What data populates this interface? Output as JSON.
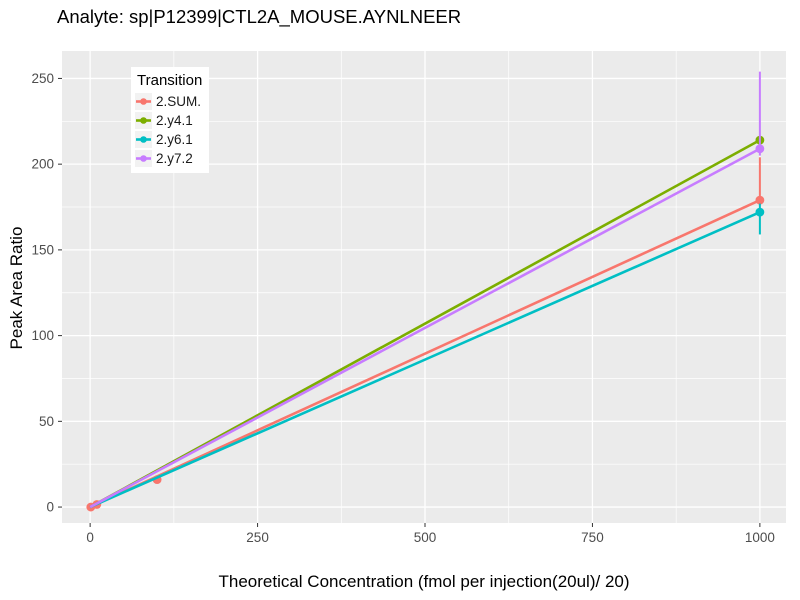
{
  "chart_data": {
    "type": "line",
    "title": "Analyte: sp|P12399|CTL2A_MOUSE.AYNLNEER",
    "xlabel": "Theoretical Concentration (fmol per injection(20ul)/ 20)",
    "ylabel": "Peak Area Ratio",
    "x_ticks": [
      0,
      250,
      500,
      750,
      1000
    ],
    "y_ticks": [
      0,
      50,
      100,
      150,
      200,
      250
    ],
    "xlim": [
      -42,
      1039
    ],
    "ylim": [
      -9.3,
      266
    ],
    "grid": true,
    "panel_bg": "#EBEBEB",
    "grid_color": "#FFFFFF",
    "tick_color": "#333333",
    "legend": {
      "title": "Transition",
      "position": "inside-top-left"
    },
    "series": [
      {
        "name": "2.SUM.",
        "color": "#F8766D",
        "line_x": [
          0,
          1000
        ],
        "line_y": [
          0,
          179
        ],
        "points": [
          [
            1,
            0
          ],
          [
            10,
            1.5
          ],
          [
            100,
            16
          ],
          [
            1000,
            179
          ]
        ],
        "errorbars": [
          {
            "x": 1000,
            "ymin": 176,
            "ymax": 204
          }
        ]
      },
      {
        "name": "2.y4.1",
        "color": "#7CAE00",
        "line_x": [
          0,
          1000
        ],
        "line_y": [
          0,
          214
        ],
        "points": [
          [
            1000,
            214
          ]
        ],
        "errorbars": []
      },
      {
        "name": "2.y6.1",
        "color": "#00BFC4",
        "line_x": [
          0,
          1000
        ],
        "line_y": [
          0,
          172
        ],
        "points": [
          [
            1000,
            172
          ]
        ],
        "errorbars": [
          {
            "x": 1000,
            "ymin": 159,
            "ymax": 177
          }
        ]
      },
      {
        "name": "2.y7.2",
        "color": "#C77CFF",
        "line_x": [
          0,
          1000
        ],
        "line_y": [
          0,
          209
        ],
        "points": [
          [
            1000,
            209
          ]
        ],
        "errorbars": [
          {
            "x": 1000,
            "ymin": 205,
            "ymax": 254
          }
        ]
      }
    ]
  }
}
